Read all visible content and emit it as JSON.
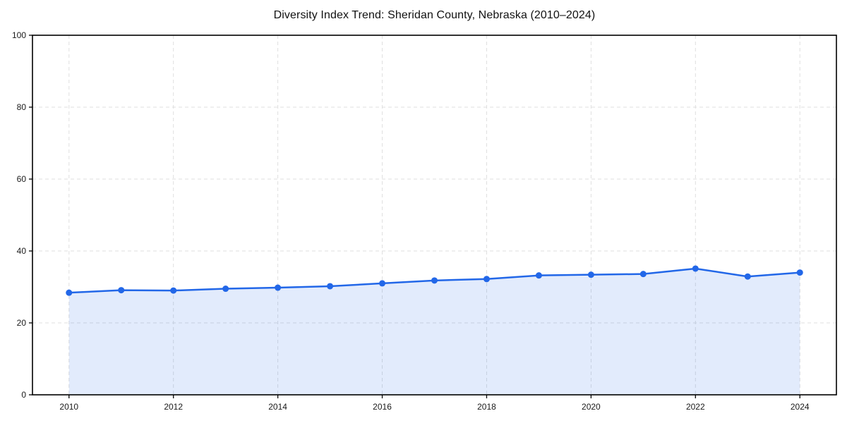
{
  "chart_data": {
    "type": "area",
    "title": "Diversity Index Trend: Sheridan County, Nebraska (2010–2024)",
    "x": [
      2010,
      2011,
      2012,
      2013,
      2014,
      2015,
      2016,
      2017,
      2018,
      2019,
      2020,
      2021,
      2022,
      2023,
      2024
    ],
    "values": [
      28.4,
      29.1,
      29.0,
      29.5,
      29.8,
      30.2,
      31.0,
      31.8,
      32.2,
      33.2,
      33.4,
      33.6,
      35.1,
      32.9,
      34.0
    ],
    "xlabel": "",
    "ylabel": "",
    "xlim": [
      2009.3,
      2024.7
    ],
    "ylim": [
      0,
      100
    ],
    "xticks": [
      2010,
      2012,
      2014,
      2016,
      2018,
      2020,
      2022,
      2024
    ],
    "yticks": [
      0,
      20,
      40,
      60,
      80,
      100
    ],
    "grid": true,
    "grid_style": "dashed",
    "legend": false,
    "colors": {
      "line": "#2267e8",
      "fill": "rgba(34,103,232,0.13)",
      "grid": "#dfdfdf",
      "axis": "#000000",
      "tick_text": "#1a1a1a",
      "background": "#ffffff"
    }
  }
}
